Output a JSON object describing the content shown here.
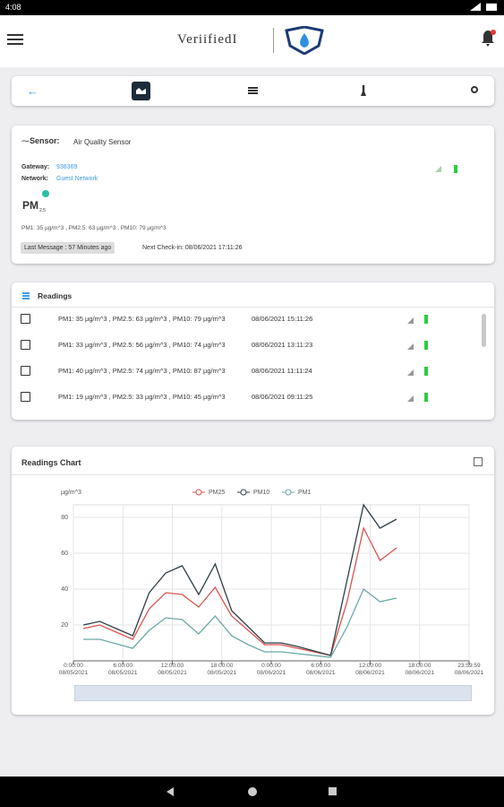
{
  "status_bar": {
    "time": "4:08"
  },
  "header": {
    "logo": "VeriifiedI"
  },
  "sensor": {
    "label": "Sensor:",
    "name": "Air Quality Sensor",
    "gateway_label": "Gateway:",
    "gateway": "938369",
    "network_label": "Network:",
    "network": "Guest Network",
    "icon_text": "PM",
    "icon_sub": "2.5",
    "summary": "PM1: 35 µg/m^3 , PM2.5: 63 µg/m^3 , PM10: 79 µg/m^3",
    "last_message": "Last Message : 57 Minutes ago",
    "next_checkin": "Next Check-in: 08/06/2021 17:11:26"
  },
  "readings": {
    "title": "Readings",
    "rows": [
      {
        "text": "PM1: 35 µg/m^3 , PM2.5: 63 µg/m^3 , PM10: 79 µg/m^3",
        "date": "08/06/2021 15:11:26"
      },
      {
        "text": "PM1: 33 µg/m^3 , PM2.5: 56 µg/m^3 , PM10: 74 µg/m^3",
        "date": "08/06/2021 13:11:23"
      },
      {
        "text": "PM1: 40 µg/m^3 , PM2.5: 74 µg/m^3 , PM10: 87 µg/m^3",
        "date": "08/06/2021 11:11:24"
      },
      {
        "text": "PM1: 19 µg/m^3 , PM2.5: 33 µg/m^3 , PM10: 45 µg/m^3",
        "date": "08/06/2021 09:11:25"
      }
    ]
  },
  "chart_data": {
    "type": "line",
    "title": "Readings Chart",
    "y_label": "µg/m^3",
    "x": [
      1.2,
      3.2,
      7.2,
      9.2,
      11.2,
      13.2,
      15.2,
      17.2,
      19.2,
      21.2,
      23.2,
      25.2,
      27.2,
      31.2,
      33.2,
      35.2,
      37.2,
      39.2
    ],
    "series": [
      {
        "name": "PM25",
        "color": "#d9534f",
        "values": [
          18,
          20,
          12,
          29,
          38,
          37,
          30,
          41,
          25,
          17,
          9,
          9,
          7,
          3,
          33,
          74,
          56,
          63
        ]
      },
      {
        "name": "PM10",
        "color": "#2f3e46",
        "values": [
          20,
          22,
          14,
          38,
          49,
          53,
          37,
          54,
          28,
          19,
          10,
          10,
          8,
          3,
          45,
          87,
          74,
          79
        ]
      },
      {
        "name": "PM1",
        "color": "#6aa9a6",
        "values": [
          12,
          12,
          7,
          17,
          24,
          23,
          15,
          25,
          14,
          9,
          5,
          5,
          4,
          2,
          19,
          40,
          33,
          35
        ]
      }
    ],
    "xlim": [
      0,
      48
    ],
    "xticks": [
      {
        "value": 0,
        "label": "0:00:00\n08/05/2021"
      },
      {
        "value": 6,
        "label": "6:00:00\n08/05/2021"
      },
      {
        "value": 12,
        "label": "12:00:00\n08/05/2021"
      },
      {
        "value": 18,
        "label": "18:00:00\n08/05/2021"
      },
      {
        "value": 24,
        "label": "0:00:00\n08/06/2021"
      },
      {
        "value": 30,
        "label": "6:00:00\n08/06/2021"
      },
      {
        "value": 36,
        "label": "12:00:00\n08/06/2021"
      },
      {
        "value": 42,
        "label": "18:00:00\n08/06/2021"
      },
      {
        "value": 48,
        "label": "23:59:59\n08/06/2021"
      }
    ],
    "ylim": [
      0,
      87
    ],
    "yticks": [
      20,
      40,
      60,
      80
    ],
    "grid": true
  }
}
